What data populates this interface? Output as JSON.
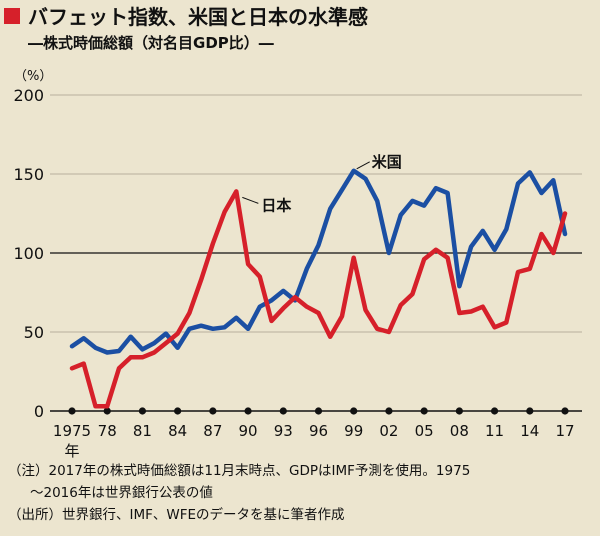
{
  "header": {
    "title": "バフェット指数、米国と日本の水準感",
    "subtitle": "―株式時価総額（対名目GDP比）―"
  },
  "chart_data": {
    "type": "line",
    "title": "バフェット指数、米国と日本の水準感",
    "subtitle": "―株式時価総額（対名目GDP比）―",
    "unit_label": "（%）",
    "ylim": [
      0,
      200
    ],
    "yticks": [
      0,
      50,
      100,
      150,
      200
    ],
    "grid": true,
    "x": [
      1975,
      1976,
      1977,
      1978,
      1979,
      1980,
      1981,
      1982,
      1983,
      1984,
      1985,
      1986,
      1987,
      1988,
      1989,
      1990,
      1991,
      1992,
      1993,
      1994,
      1995,
      1996,
      1997,
      1998,
      1999,
      2000,
      2001,
      2002,
      2003,
      2004,
      2005,
      2006,
      2007,
      2008,
      2009,
      2010,
      2011,
      2012,
      2013,
      2014,
      2015,
      2016,
      2017
    ],
    "xtick_labels": [
      "1975",
      "78",
      "81",
      "84",
      "87",
      "90",
      "93",
      "96",
      "99",
      "02",
      "05",
      "08",
      "11",
      "14",
      "17"
    ],
    "xtick_years": [
      1975,
      1978,
      1981,
      1984,
      1987,
      1990,
      1993,
      1996,
      1999,
      2002,
      2005,
      2008,
      2011,
      2014,
      2017
    ],
    "x_unit_label": "年",
    "series": [
      {
        "name": "米国",
        "color": "#1b4fa3",
        "values": [
          41,
          46,
          40,
          37,
          38,
          47,
          39,
          43,
          49,
          40,
          52,
          54,
          52,
          53,
          59,
          52,
          66,
          70,
          76,
          70,
          90,
          105,
          128,
          140,
          152,
          147,
          133,
          100,
          124,
          133,
          130,
          141,
          138,
          79,
          104,
          114,
          102,
          115,
          144,
          151,
          138,
          146,
          112
        ]
      },
      {
        "name": "日本",
        "color": "#d6202a",
        "values": [
          27,
          30,
          3,
          3,
          27,
          34,
          34,
          37,
          43,
          49,
          62,
          83,
          106,
          126,
          139,
          93,
          85,
          57,
          65,
          72,
          66,
          62,
          47,
          60,
          97,
          64,
          52,
          50,
          67,
          74,
          96,
          102,
          97,
          62,
          63,
          66,
          53,
          56,
          88,
          90,
          112,
          100,
          125
        ]
      }
    ]
  },
  "notes": [
    "（注）2017年の株式時価総額は11月末時点、GDPはIMF予測を使用。1975",
    "～2016年は世界銀行公表の値",
    "（出所）世界銀行、IMF、WFEのデータを基に筆者作成"
  ]
}
